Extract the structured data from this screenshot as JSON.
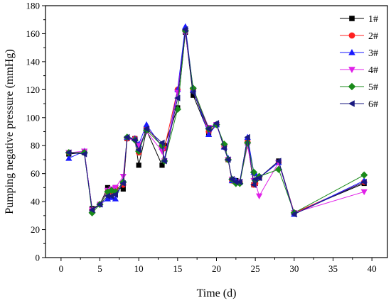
{
  "chart_data": {
    "type": "line",
    "xlabel": "Time (d)",
    "ylabel": "Pumping negative pressure (mmHg)",
    "xlim": [
      -2,
      42
    ],
    "ylim": [
      0,
      180
    ],
    "xticks": [
      0,
      5,
      10,
      15,
      20,
      25,
      30,
      35,
      40
    ],
    "yticks": [
      0,
      20,
      40,
      60,
      80,
      100,
      120,
      140,
      160,
      180
    ],
    "grid": false,
    "legend_position": "top-right",
    "x": [
      1,
      3,
      4,
      5,
      6,
      6.5,
      7,
      8,
      8.5,
      9.5,
      10,
      11,
      13,
      13.3,
      15,
      16,
      17,
      19,
      20,
      21,
      21.5,
      22,
      22.5,
      23,
      24,
      24.8,
      25,
      25.5,
      28,
      30,
      39
    ],
    "series": [
      {
        "name": "1#",
        "color": "#000000",
        "marker": "square",
        "values": [
          74,
          75,
          35,
          38,
          50,
          48,
          50,
          49,
          85,
          85,
          66,
          91,
          66,
          80,
          107,
          161,
          116,
          89,
          95,
          80,
          70,
          55,
          55,
          54,
          82,
          52,
          53,
          57,
          69,
          32,
          53
        ]
      },
      {
        "name": "2#",
        "color": "#ff2020",
        "marker": "circle",
        "values": [
          75,
          75,
          34,
          38,
          47,
          47,
          49,
          52,
          85,
          85,
          75,
          93,
          80,
          78,
          120,
          162,
          120,
          90,
          95,
          80,
          70,
          55,
          54,
          54,
          83,
          52,
          53,
          57,
          68,
          32,
          54
        ]
      },
      {
        "name": "3#",
        "color": "#1a1aff",
        "marker": "triangle-up",
        "values": [
          71,
          76,
          34,
          38,
          42,
          43,
          42,
          55,
          86,
          85,
          81,
          95,
          79,
          70,
          120,
          165,
          120,
          88,
          95,
          79,
          71,
          55,
          55,
          54,
          86,
          61,
          60,
          57,
          68,
          31,
          55
        ]
      },
      {
        "name": "4#",
        "color": "#e020e8",
        "marker": "triangle-down",
        "values": [
          75,
          76,
          34,
          38,
          48,
          49,
          50,
          58,
          85,
          84,
          80,
          90,
          76,
          69,
          118,
          160,
          120,
          93,
          95,
          79,
          70,
          56,
          53,
          54,
          80,
          55,
          54,
          44,
          68,
          32,
          47
        ]
      },
      {
        "name": "5#",
        "color": "#1a8a1a",
        "marker": "diamond",
        "values": [
          75,
          75,
          32,
          38,
          47,
          48,
          47,
          54,
          86,
          84,
          76,
          91,
          80,
          69,
          106,
          162,
          121,
          92,
          95,
          81,
          70,
          56,
          53,
          53,
          82,
          61,
          55,
          58,
          63,
          32,
          59
        ]
      },
      {
        "name": "6#",
        "color": "#1a1a80",
        "marker": "triangle-left",
        "values": [
          75,
          74,
          34,
          38,
          44,
          44,
          45,
          53,
          86,
          84,
          77,
          92,
          82,
          69,
          114,
          163,
          118,
          92,
          96,
          78,
          70,
          56,
          54,
          54,
          86,
          52,
          56,
          57,
          69,
          31,
          54
        ]
      }
    ]
  }
}
